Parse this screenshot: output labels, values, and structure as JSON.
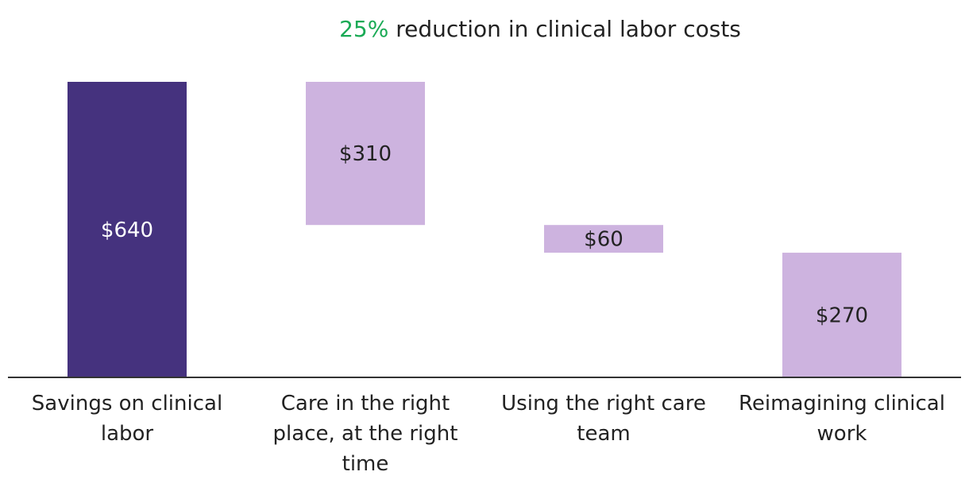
{
  "chart_data": {
    "type": "bar",
    "subtype": "waterfall",
    "title_highlight": "25%",
    "title_rest": " reduction in clinical labor costs",
    "categories": [
      "Savings on clinical labor",
      "Care in the right place, at the right time",
      "Using the right care team",
      "Reimagining clinical work"
    ],
    "values": [
      640,
      310,
      60,
      270
    ],
    "value_labels": [
      "$640",
      "$310",
      "$60",
      "$270"
    ],
    "bar_kind": [
      "total",
      "decrease",
      "decrease",
      "decrease"
    ],
    "ylim": [
      0,
      640
    ],
    "grid": false,
    "legend": "none"
  },
  "colors": {
    "highlight": "#1aaa55",
    "total_bar": "#45327e",
    "step_bar": "#cdb3df",
    "total_label": "#ffffff",
    "step_label": "#222222",
    "axis": "#333333"
  }
}
